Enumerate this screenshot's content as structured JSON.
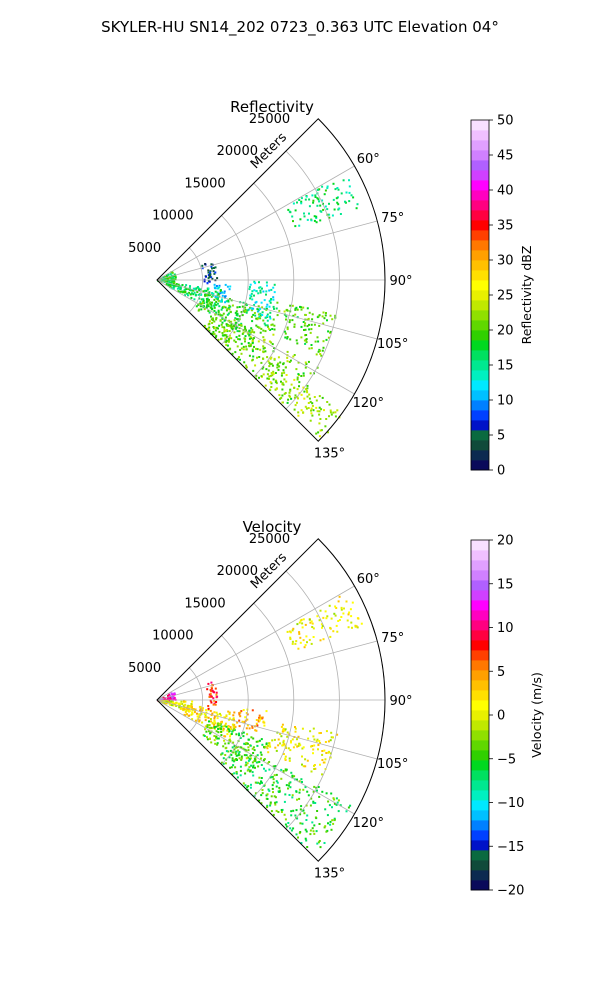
{
  "figure_title": "SKYLER-HU  SN14_202  0723_0.363 UTC Elevation 04°",
  "chart_data": [
    {
      "type": "heatmap",
      "title": "Reflectivity",
      "radial_axis_label": "Meters",
      "radial_ticks": [
        5000,
        10000,
        15000,
        20000,
        25000
      ],
      "azimuth_ticks": [
        "60°",
        "75°",
        "90°",
        "105°",
        "120°",
        "135°"
      ],
      "azimuth_range_deg": [
        45,
        135
      ],
      "radial_range_m": [
        0,
        25000
      ],
      "grid": true,
      "colorbar": {
        "label": "Reflectivity dBZ",
        "range": [
          0,
          50
        ],
        "ticks": [
          "0",
          "5",
          "10",
          "15",
          "20",
          "25",
          "30",
          "35",
          "40",
          "45",
          "50"
        ],
        "colors": [
          "#0a0a5a",
          "#0c2a50",
          "#104a3a",
          "#0a6a40",
          "#0012c8",
          "#0040ff",
          "#0080ff",
          "#00c0ff",
          "#00e8ff",
          "#00f0c0",
          "#00e890",
          "#00e060",
          "#00d820",
          "#30d000",
          "#60d800",
          "#90e000",
          "#c0e800",
          "#e8f000",
          "#ffff00",
          "#ffe000",
          "#ffc000",
          "#ffa000",
          "#ff7800",
          "#ff4000",
          "#ff0000",
          "#ff0040",
          "#ff0080",
          "#ff00c0",
          "#ff00ff",
          "#d040ff",
          "#b060ff",
          "#d080ff",
          "#e0a0ff",
          "#f0c0ff",
          "#f8e0ff"
        ]
      },
      "echoes": [
        {
          "az": [
            55,
            100
          ],
          "r": [
            0,
            2000
          ],
          "level": 18
        },
        {
          "az": [
            98,
            118
          ],
          "r": [
            1000,
            7000
          ],
          "level": 17
        },
        {
          "az": [
            104,
            126
          ],
          "r": [
            5000,
            13000
          ],
          "level": 19
        },
        {
          "az": [
            118,
            135
          ],
          "r": [
            7000,
            20000
          ],
          "level": 21
        },
        {
          "az": [
            125,
            134
          ],
          "r": [
            15000,
            25000
          ],
          "level": 22
        },
        {
          "az": [
            70,
            93
          ],
          "r": [
            5000,
            6500
          ],
          "level": 5
        },
        {
          "az": [
            93,
            108
          ],
          "r": [
            6000,
            8000
          ],
          "level": 12
        },
        {
          "az": [
            90,
            110
          ],
          "r": [
            10000,
            13000
          ],
          "level": 14
        },
        {
          "az": [
            100,
            115
          ],
          "r": [
            13000,
            20000
          ],
          "level": 20
        },
        {
          "az": [
            60,
            70
          ],
          "r": [
            16000,
            24000
          ],
          "level": 16
        }
      ]
    },
    {
      "type": "heatmap",
      "title": "Velocity",
      "radial_axis_label": "Meters",
      "radial_ticks": [
        5000,
        10000,
        15000,
        20000,
        25000
      ],
      "azimuth_ticks": [
        "60°",
        "75°",
        "90°",
        "105°",
        "120°",
        "135°"
      ],
      "azimuth_range_deg": [
        45,
        135
      ],
      "radial_range_m": [
        0,
        25000
      ],
      "grid": true,
      "colorbar": {
        "label": "Velocity (m/s)",
        "range": [
          -20,
          20
        ],
        "ticks": [
          "−20",
          "−15",
          "−10",
          "−5",
          "0",
          "5",
          "10",
          "15",
          "20"
        ],
        "colors": [
          "#0a0a5a",
          "#0c2a50",
          "#104a3a",
          "#0a6a40",
          "#0012c8",
          "#0040ff",
          "#0080ff",
          "#00c0ff",
          "#00e8ff",
          "#00f0c0",
          "#00e890",
          "#00e060",
          "#00d820",
          "#30d000",
          "#60d800",
          "#90e000",
          "#c0e800",
          "#e8f000",
          "#ffff00",
          "#ffe000",
          "#ffc000",
          "#ffa000",
          "#ff7800",
          "#ff4000",
          "#ff0000",
          "#ff0040",
          "#ff0080",
          "#ff00c0",
          "#ff00ff",
          "#d040ff",
          "#b060ff",
          "#d080ff",
          "#e0a0ff",
          "#f0c0ff",
          "#f8e0ff"
        ]
      },
      "echoes": [
        {
          "az": [
            60,
            90
          ],
          "r": [
            0,
            2000
          ],
          "level": 12
        },
        {
          "az": [
            90,
            110
          ],
          "r": [
            0,
            4000
          ],
          "level": 1
        },
        {
          "az": [
            98,
            118
          ],
          "r": [
            3000,
            9000
          ],
          "level": 2
        },
        {
          "az": [
            110,
            128
          ],
          "r": [
            6000,
            13000
          ],
          "level": -4
        },
        {
          "az": [
            118,
            135
          ],
          "r": [
            9000,
            24000
          ],
          "level": -5
        },
        {
          "az": [
            70,
            100
          ],
          "r": [
            5500,
            6500
          ],
          "level": 8
        },
        {
          "az": [
            95,
            108
          ],
          "r": [
            9000,
            12000
          ],
          "level": 4
        },
        {
          "az": [
            100,
            115
          ],
          "r": [
            13000,
            20000
          ],
          "level": 1
        },
        {
          "az": [
            60,
            70
          ],
          "r": [
            16000,
            24000
          ],
          "level": 1
        }
      ]
    }
  ]
}
